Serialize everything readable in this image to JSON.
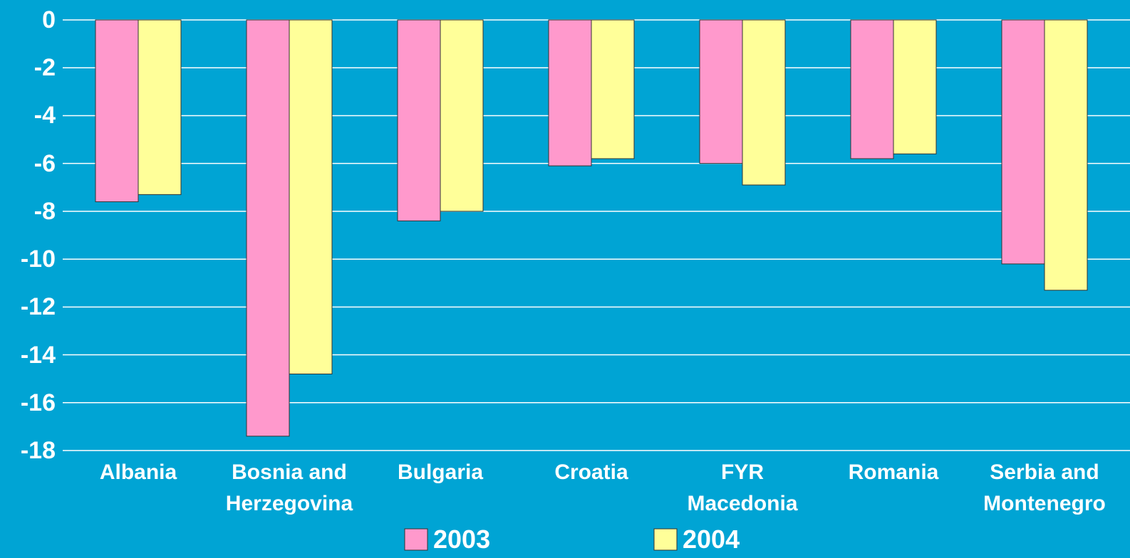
{
  "chart_data": {
    "type": "bar",
    "categories": [
      "Albania",
      "Bosnia and Herzegovina",
      "Bulgaria",
      "Croatia",
      "FYR Macedonia",
      "Romania",
      "Serbia and Montenegro"
    ],
    "series": [
      {
        "name": "2003",
        "color": "#ff99cc",
        "values": [
          -7.6,
          -17.4,
          -8.4,
          -6.1,
          -6.0,
          -5.8,
          -10.2
        ]
      },
      {
        "name": "2004",
        "color": "#ffff99",
        "values": [
          -7.3,
          -14.8,
          -8.0,
          -5.8,
          -6.9,
          -5.6,
          -11.3
        ]
      }
    ],
    "ylim": [
      -18,
      0
    ],
    "yticks": [
      0,
      -2,
      -4,
      -6,
      -8,
      -10,
      -12,
      -14,
      -16,
      -18
    ],
    "grid": true
  }
}
